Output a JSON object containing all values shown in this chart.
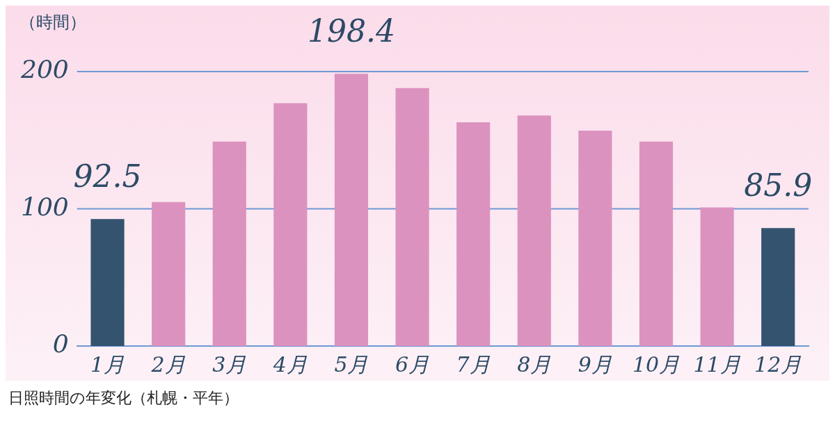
{
  "chart_data": {
    "type": "bar",
    "ylabel": "（時間）",
    "categories": [
      "1月",
      "2月",
      "3月",
      "4月",
      "5月",
      "6月",
      "7月",
      "8月",
      "9月",
      "10月",
      "11月",
      "12月"
    ],
    "values": [
      92.5,
      105,
      149,
      177,
      198.4,
      188,
      163,
      168,
      157,
      149,
      101,
      85.9
    ],
    "colors": [
      "#34536f",
      "#dc92bf",
      "#dc92bf",
      "#dc92bf",
      "#dc92bf",
      "#dc92bf",
      "#dc92bf",
      "#dc92bf",
      "#dc92bf",
      "#dc92bf",
      "#dc92bf",
      "#34536f"
    ],
    "value_labels": [
      "92.5",
      null,
      null,
      null,
      "198.4",
      null,
      null,
      null,
      null,
      null,
      null,
      "85.9"
    ],
    "ylim": [
      0,
      200
    ],
    "yticks": [
      0,
      100,
      200
    ],
    "ref_lines": [
      {
        "axis": "y",
        "value": 100,
        "color": "#6f98d6"
      },
      {
        "axis": "y",
        "value": 200,
        "color": "#6f98d6"
      }
    ],
    "legend": false,
    "annotations": [
      "日照時間の年変化（札幌・平年）"
    ]
  }
}
